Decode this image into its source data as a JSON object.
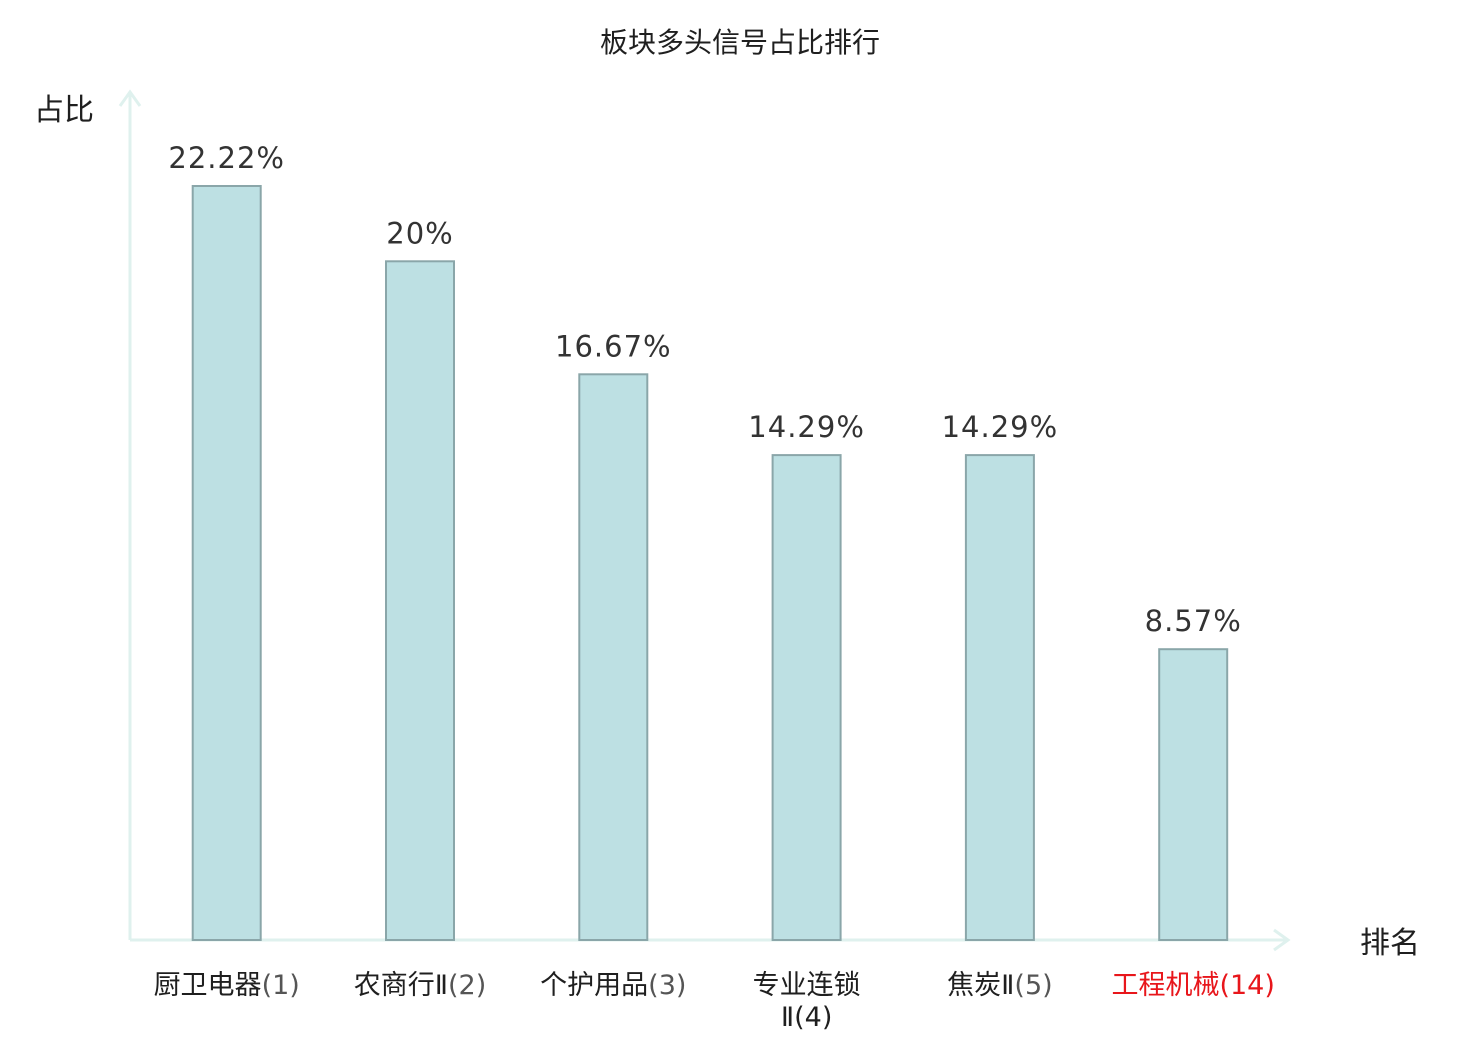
{
  "chart_data": {
    "type": "bar",
    "title": "板块多头信号占比排行",
    "ylabel": "占比",
    "xlabel": "排名",
    "ylim": [
      0,
      25
    ],
    "grid": false,
    "categories": [
      {
        "name": "厨卫电器",
        "rank": "(1)",
        "highlight": false
      },
      {
        "name": "农商行Ⅱ",
        "rank": "(2)",
        "highlight": false
      },
      {
        "name": "个护用品",
        "rank": "(3)",
        "highlight": false
      },
      {
        "name": "专业连锁",
        "name2": "Ⅱ(4)",
        "rank": "",
        "highlight": false
      },
      {
        "name": "焦炭Ⅱ",
        "rank": "(5)",
        "highlight": false
      },
      {
        "name": "工程机械",
        "rank": "(14)",
        "highlight": true
      }
    ],
    "values": [
      22.22,
      20,
      16.67,
      14.29,
      14.29,
      8.57
    ],
    "value_labels": [
      "22.22%",
      "20%",
      "16.67%",
      "14.29%",
      "14.29%",
      "8.57%"
    ],
    "colors": {
      "bar_fill": "#bde0e3",
      "bar_stroke": "#8aa6a9",
      "axis": "#dff1ee",
      "highlight_text": "#e8161b",
      "text": "#1f1f1f",
      "value_text": "#333333",
      "rank_text": "#555555"
    }
  }
}
